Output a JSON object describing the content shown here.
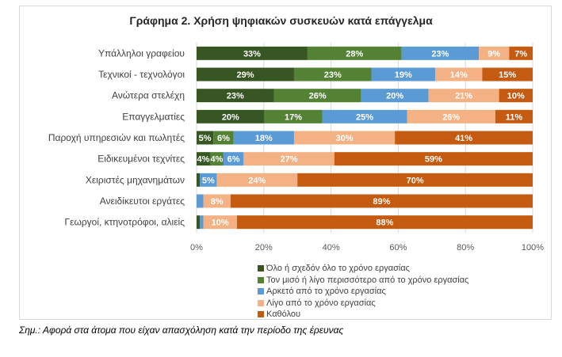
{
  "chart_data": {
    "type": "bar",
    "orientation": "horizontal",
    "stacked": "percent",
    "title": "Γράφημα 2. Χρήση ψηφιακών συσκευών κατά επάγγελμα",
    "categories": [
      "Υπάλληλοι γραφείου",
      "Τεχνικοί - τεχνολόγοι",
      "Ανώτερα στελέχη",
      "Επαγγελματίες",
      "Παροχή υπηρεσιών και πωλητές",
      "Ειδικευμένοι τεχνίτες",
      "Χειριστές μηχανημάτων",
      "Ανειδίκευτοι εργάτες",
      "Γεωργοί, κτηνοτρόφοι, αλιείς"
    ],
    "series": [
      {
        "name": "Όλο ή σχεδόν όλο το χρόνο εργασίας",
        "color": "#375623",
        "values": [
          33,
          29,
          23,
          20,
          5,
          4,
          1,
          0,
          1
        ],
        "labels": [
          "33%",
          "29%",
          "23%",
          "20%",
          "5%",
          "4%",
          "",
          "",
          ""
        ]
      },
      {
        "name": "Τον μισό ή λίγο περισσότερο από το χρόνο εργασίας",
        "color": "#548235",
        "values": [
          28,
          23,
          26,
          17,
          6,
          4,
          0,
          0,
          0
        ],
        "labels": [
          "28%",
          "23%",
          "26%",
          "17%",
          "6%",
          "4%",
          "",
          "",
          ""
        ]
      },
      {
        "name": "Αρκετό από το χρόνο εργασίας",
        "color": "#5b9bd5",
        "values": [
          23,
          19,
          20,
          25,
          18,
          6,
          5,
          2,
          1
        ],
        "labels": [
          "23%",
          "19%",
          "20%",
          "25%",
          "18%",
          "6%",
          "5%",
          "",
          ""
        ]
      },
      {
        "name": "Λίγο από το χρόνο εργασίας",
        "color": "#f4b183",
        "values": [
          9,
          14,
          21,
          26,
          30,
          27,
          24,
          8,
          10
        ],
        "labels": [
          "9%",
          "14%",
          "21%",
          "26%",
          "30%",
          "27%",
          "24%",
          "8%",
          "10%"
        ]
      },
      {
        "name": "Καθόλου",
        "color": "#c55a11",
        "values": [
          7,
          15,
          10,
          11,
          41,
          59,
          70,
          89,
          88
        ],
        "labels": [
          "7%",
          "15%",
          "10%",
          "11%",
          "41%",
          "59%",
          "70%",
          "89%",
          "88%"
        ]
      }
    ],
    "xlim": [
      0,
      100
    ],
    "xticks": [
      "0%",
      "20%",
      "40%",
      "60%",
      "80%",
      "100%"
    ],
    "grid": true,
    "legend_position": "bottom"
  },
  "note": "Σημ.: Αφορά στα άτομα που είχαν απασχόληση κατά την περίοδο της έρευνας"
}
